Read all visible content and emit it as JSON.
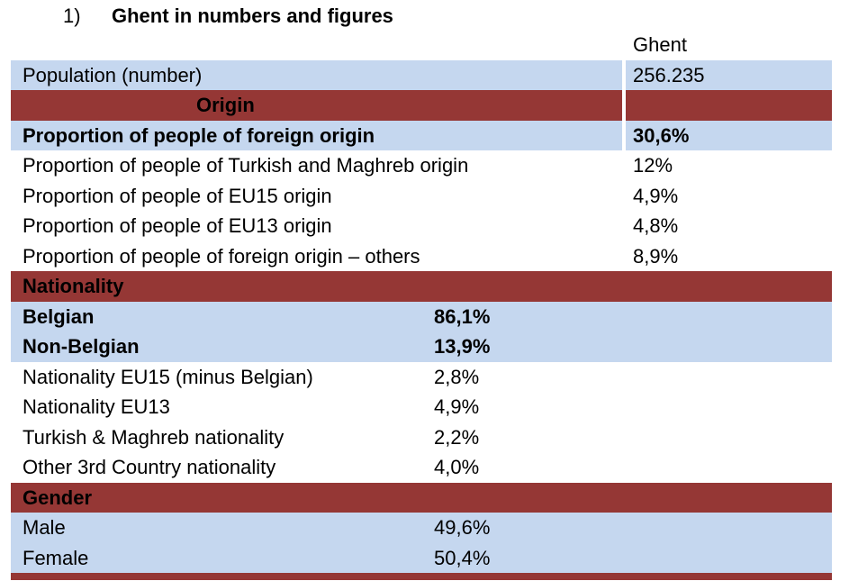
{
  "heading": {
    "number": "1)",
    "title": "Ghent in numbers and figures"
  },
  "column_header": "Ghent",
  "population": {
    "label": "Population (number)",
    "value": "256.235"
  },
  "origin": {
    "section_label": "Origin",
    "rows": [
      {
        "label": "Proportion of people of foreign origin",
        "value": "30,6%"
      },
      {
        "label": "Proportion of people of Turkish and Maghreb origin",
        "value": "12%"
      },
      {
        "label": "Proportion of people of EU15 origin",
        "value": "4,9%"
      },
      {
        "label": "Proportion of people of EU13 origin",
        "value": "4,8%"
      },
      {
        "label": "Proportion of people of foreign origin – others",
        "value": "8,9%"
      }
    ]
  },
  "nationality": {
    "section_label": "Nationality",
    "rows": [
      {
        "label": "Belgian",
        "value": "86,1%"
      },
      {
        "label": "Non-Belgian",
        "value": "13,9%"
      },
      {
        "label": "Nationality EU15 (minus Belgian)",
        "value": "2,8%"
      },
      {
        "label": "Nationality EU13",
        "value": "4,9%"
      },
      {
        "label": "Turkish & Maghreb nationality",
        "value": "2,2%"
      },
      {
        "label": "Other 3rd Country nationality",
        "value": "4,0%"
      }
    ]
  },
  "gender": {
    "section_label": "Gender",
    "rows": [
      {
        "label": "Male",
        "value": "49,6%"
      },
      {
        "label": "Female",
        "value": "50,4%"
      }
    ]
  },
  "colors": {
    "row_blue": "#c5d7ef",
    "section_red": "#953735"
  }
}
